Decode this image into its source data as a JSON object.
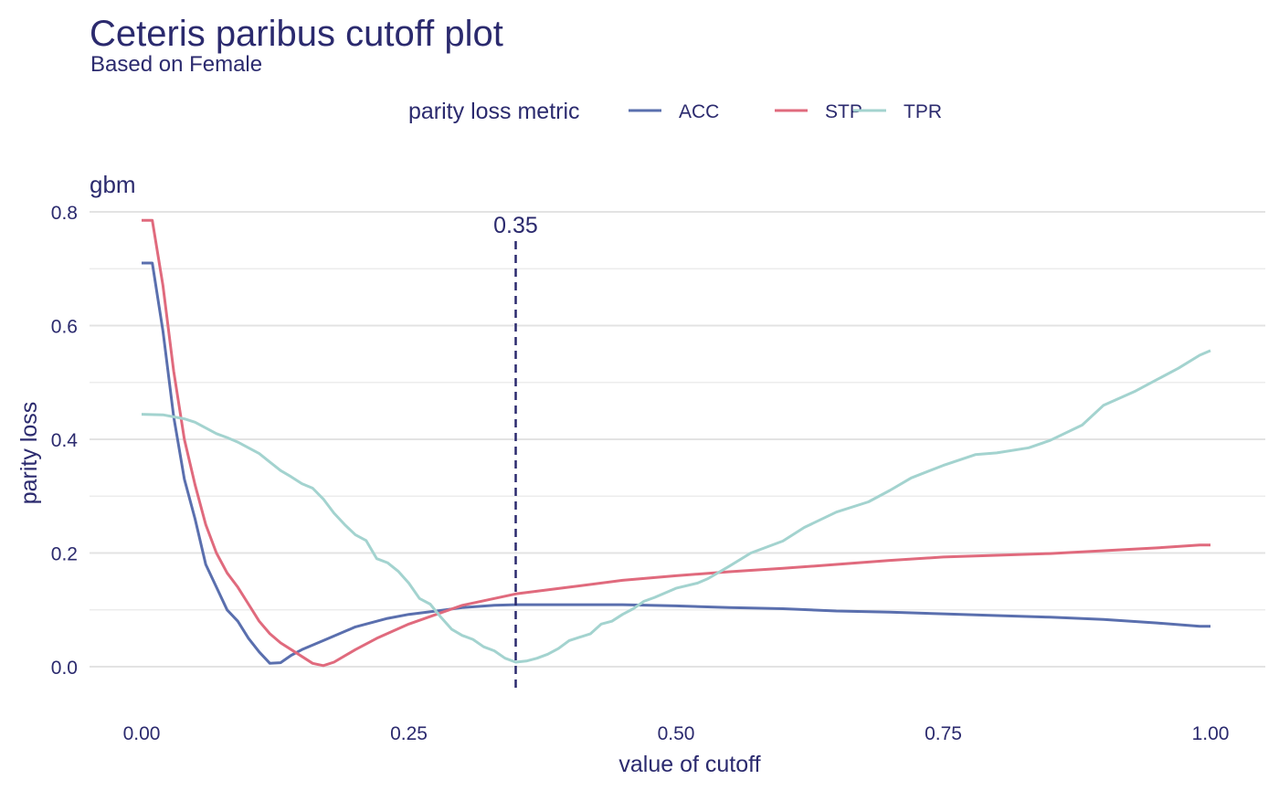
{
  "title": "Ceteris paribus cutoff plot",
  "subtitle": "Based on Female",
  "legend": {
    "title": "parity loss metric",
    "items": [
      {
        "label": "ACC",
        "color": "#5a6fae"
      },
      {
        "label": "STP",
        "color": "#e06a7d"
      },
      {
        "label": "TPR",
        "color": "#a3d3cf"
      }
    ]
  },
  "facet_label": "gbm",
  "cutoff_label": "0.35",
  "chart_data": {
    "type": "line",
    "title": "Ceteris paribus cutoff plot",
    "subtitle": "Based on Female",
    "xlabel": "value of cutoff",
    "ylabel": "parity loss",
    "xlim": [
      0,
      1
    ],
    "ylim": [
      0,
      0.8
    ],
    "xticks": [
      0.0,
      0.25,
      0.5,
      0.75,
      1.0
    ],
    "xtick_labels": [
      "0.00",
      "0.25",
      "0.50",
      "0.75",
      "1.00"
    ],
    "yticks": [
      0.0,
      0.2,
      0.4,
      0.6,
      0.8
    ],
    "ytick_labels": [
      "0.0",
      "0.2",
      "0.4",
      "0.6",
      "0.8"
    ],
    "grid": true,
    "legend_position": "top",
    "vline": {
      "x": 0.35,
      "label": "0.35"
    },
    "series": [
      {
        "name": "ACC",
        "color": "#5a6fae",
        "x": [
          0.0,
          0.01,
          0.02,
          0.03,
          0.04,
          0.05,
          0.06,
          0.07,
          0.08,
          0.09,
          0.1,
          0.11,
          0.12,
          0.13,
          0.14,
          0.15,
          0.17,
          0.2,
          0.23,
          0.25,
          0.28,
          0.3,
          0.33,
          0.35,
          0.4,
          0.45,
          0.5,
          0.55,
          0.6,
          0.65,
          0.7,
          0.75,
          0.8,
          0.85,
          0.9,
          0.95,
          0.99,
          1.0
        ],
        "y": [
          0.71,
          0.71,
          0.59,
          0.44,
          0.33,
          0.26,
          0.18,
          0.14,
          0.1,
          0.08,
          0.05,
          0.026,
          0.006,
          0.007,
          0.02,
          0.03,
          0.046,
          0.07,
          0.085,
          0.092,
          0.099,
          0.104,
          0.108,
          0.109,
          0.109,
          0.109,
          0.107,
          0.104,
          0.102,
          0.098,
          0.096,
          0.093,
          0.09,
          0.087,
          0.083,
          0.077,
          0.071,
          0.071
        ]
      },
      {
        "name": "STP",
        "color": "#e06a7d",
        "x": [
          0.0,
          0.01,
          0.02,
          0.03,
          0.04,
          0.05,
          0.06,
          0.07,
          0.08,
          0.09,
          0.1,
          0.11,
          0.12,
          0.13,
          0.14,
          0.15,
          0.16,
          0.17,
          0.18,
          0.2,
          0.22,
          0.25,
          0.28,
          0.3,
          0.33,
          0.35,
          0.4,
          0.45,
          0.5,
          0.55,
          0.6,
          0.65,
          0.7,
          0.75,
          0.8,
          0.85,
          0.9,
          0.95,
          0.99,
          1.0
        ],
        "y": [
          0.785,
          0.785,
          0.67,
          0.52,
          0.4,
          0.32,
          0.25,
          0.2,
          0.165,
          0.14,
          0.11,
          0.08,
          0.058,
          0.042,
          0.03,
          0.018,
          0.006,
          0.002,
          0.008,
          0.03,
          0.05,
          0.075,
          0.095,
          0.108,
          0.12,
          0.128,
          0.14,
          0.152,
          0.16,
          0.167,
          0.173,
          0.18,
          0.187,
          0.193,
          0.196,
          0.199,
          0.204,
          0.209,
          0.214,
          0.214
        ]
      },
      {
        "name": "TPR",
        "color": "#a3d3cf",
        "x": [
          0.0,
          0.02,
          0.04,
          0.05,
          0.06,
          0.07,
          0.08,
          0.09,
          0.1,
          0.11,
          0.12,
          0.13,
          0.14,
          0.15,
          0.16,
          0.17,
          0.18,
          0.19,
          0.2,
          0.21,
          0.22,
          0.23,
          0.24,
          0.25,
          0.26,
          0.27,
          0.28,
          0.29,
          0.3,
          0.31,
          0.32,
          0.33,
          0.34,
          0.35,
          0.36,
          0.37,
          0.38,
          0.39,
          0.4,
          0.42,
          0.43,
          0.44,
          0.45,
          0.46,
          0.47,
          0.48,
          0.49,
          0.5,
          0.52,
          0.53,
          0.55,
          0.57,
          0.6,
          0.62,
          0.65,
          0.68,
          0.7,
          0.72,
          0.75,
          0.78,
          0.8,
          0.83,
          0.85,
          0.88,
          0.9,
          0.93,
          0.95,
          0.97,
          0.99,
          1.0
        ],
        "y": [
          0.444,
          0.443,
          0.436,
          0.43,
          0.42,
          0.41,
          0.403,
          0.395,
          0.385,
          0.375,
          0.36,
          0.345,
          0.334,
          0.322,
          0.314,
          0.295,
          0.27,
          0.25,
          0.232,
          0.222,
          0.19,
          0.183,
          0.168,
          0.147,
          0.12,
          0.11,
          0.087,
          0.066,
          0.055,
          0.048,
          0.035,
          0.028,
          0.015,
          0.008,
          0.01,
          0.015,
          0.022,
          0.032,
          0.046,
          0.058,
          0.075,
          0.08,
          0.092,
          0.102,
          0.115,
          0.122,
          0.13,
          0.138,
          0.147,
          0.155,
          0.177,
          0.2,
          0.221,
          0.245,
          0.272,
          0.29,
          0.31,
          0.332,
          0.354,
          0.373,
          0.376,
          0.385,
          0.398,
          0.425,
          0.46,
          0.485,
          0.505,
          0.525,
          0.548,
          0.556
        ]
      }
    ]
  }
}
